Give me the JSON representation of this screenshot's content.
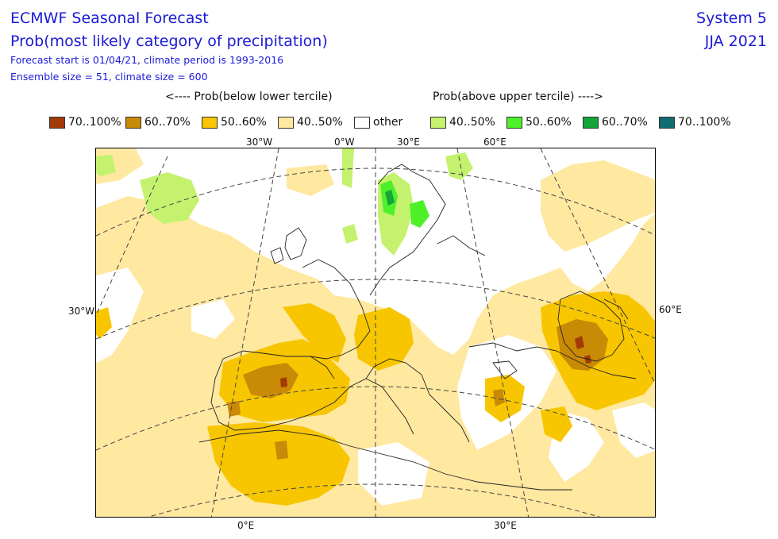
{
  "header": {
    "title_line1": "ECMWF Seasonal Forecast",
    "title_line2": "Prob(most likely category of precipitation)",
    "subtitle_line1": "Forecast start is 01/04/21, climate period is 1993-2016",
    "subtitle_line2": "Ensemble size = 51, climate size = 600",
    "system": "System 5",
    "season": "JJA 2021"
  },
  "legend": {
    "below_header": "<---- Prob(below lower tercile)",
    "above_header": "Prob(above upper tercile) ---->",
    "items": [
      {
        "label": "70..100%",
        "color": "#a33a05"
      },
      {
        "label": "60..70%",
        "color": "#c98a06"
      },
      {
        "label": "50..60%",
        "color": "#f7c600"
      },
      {
        "label": "40..50%",
        "color": "#ffe8a0"
      },
      {
        "label": "other",
        "color": "#ffffff"
      },
      {
        "label": "40..50%",
        "color": "#c4f26e"
      },
      {
        "label": "50..60%",
        "color": "#4ef02a"
      },
      {
        "label": "60..70%",
        "color": "#14a43a"
      },
      {
        "label": "70..100%",
        "color": "#0e6e72"
      }
    ]
  },
  "map": {
    "top_labels": [
      "30°W",
      "0°W",
      "30°E",
      "60°E"
    ],
    "bottom_labels": [
      "0°E",
      "30°E"
    ],
    "left_label": "30°W",
    "right_label": "60°E"
  }
}
